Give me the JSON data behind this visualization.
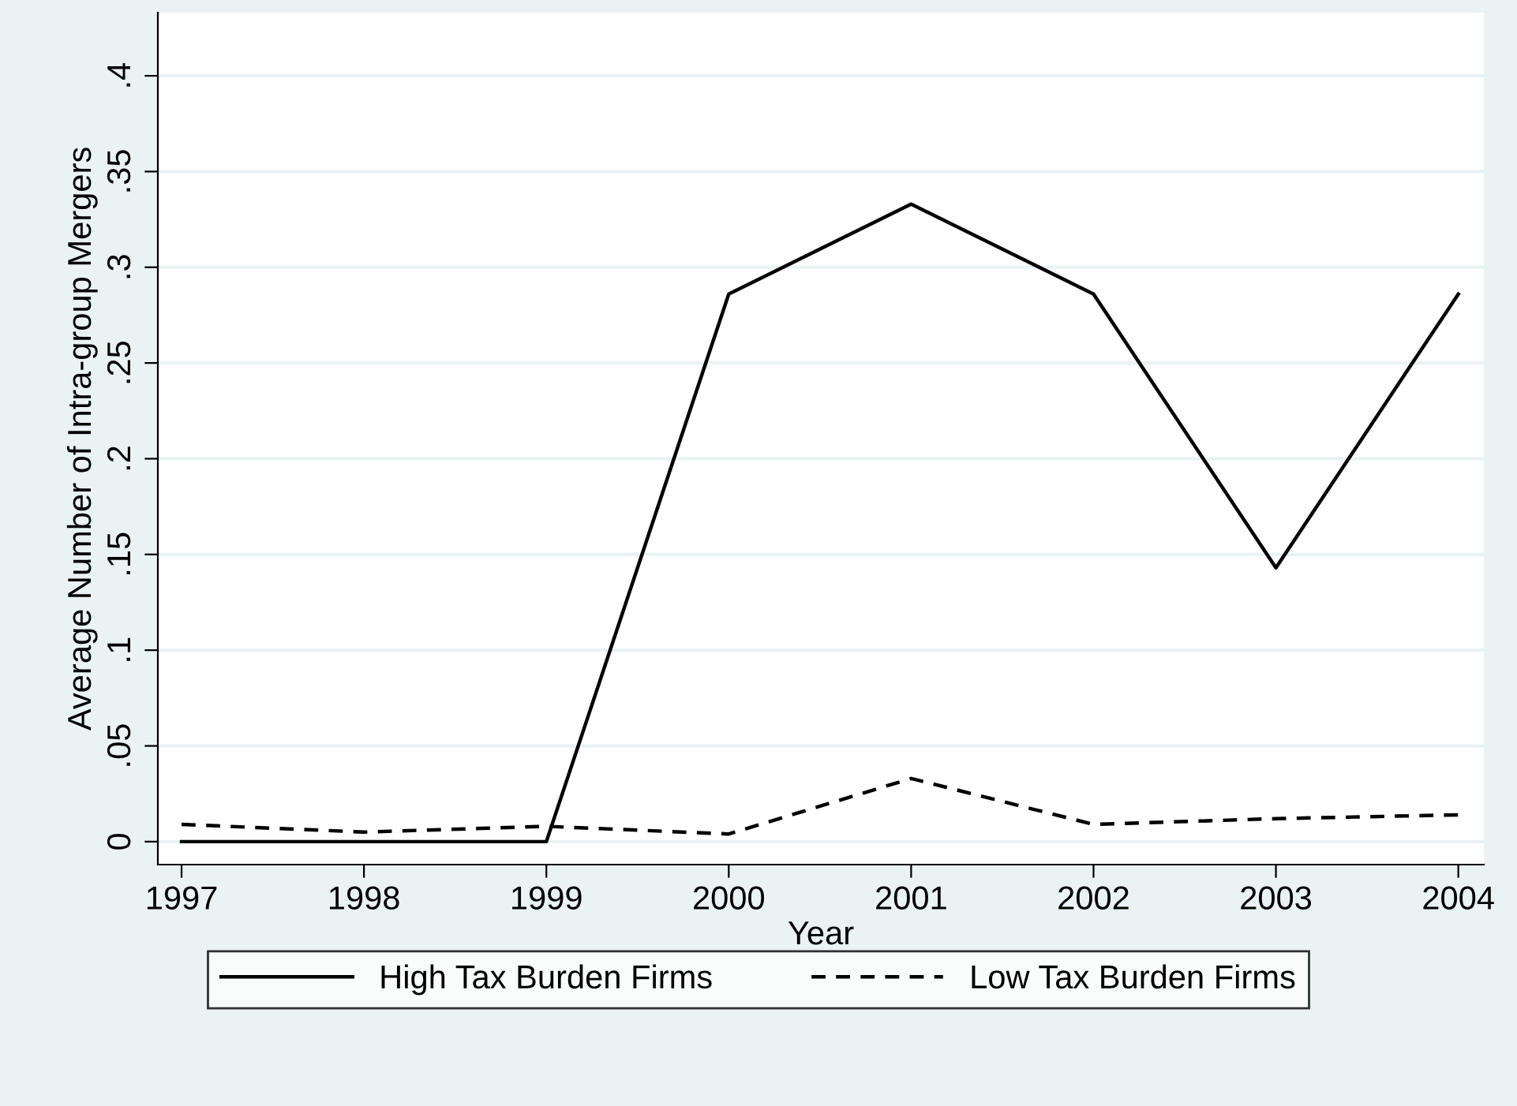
{
  "chart_data": {
    "type": "line",
    "xlabel": "Year",
    "ylabel": "Average Number of Intra-group Mergers",
    "x": [
      1997,
      1998,
      1999,
      2000,
      2001,
      2002,
      2003,
      2004
    ],
    "series": [
      {
        "name": "High Tax Burden Firms",
        "color": "#000000",
        "line_style": "solid",
        "values": [
          0,
          0,
          0,
          0.286,
          0.333,
          0.286,
          0.143,
          0.286
        ]
      },
      {
        "name": "Low Tax Burden Firms",
        "color": "#000000",
        "line_style": "dashed",
        "values": [
          0.009,
          0.005,
          0.008,
          0.004,
          0.033,
          0.009,
          0.012,
          0.014
        ]
      }
    ],
    "xlim": [
      1996.87,
      2004.14
    ],
    "xticks": [
      1997,
      1998,
      1999,
      2000,
      2001,
      2002,
      2003,
      2004
    ],
    "ylim": [
      -0.012,
      0.433
    ],
    "yticks": [
      {
        "value": 0,
        "label": "0"
      },
      {
        "value": 0.05,
        "label": ".05"
      },
      {
        "value": 0.1,
        "label": ".1"
      },
      {
        "value": 0.15,
        "label": ".15"
      },
      {
        "value": 0.2,
        "label": ".2"
      },
      {
        "value": 0.25,
        "label": ".25"
      },
      {
        "value": 0.3,
        "label": ".3"
      },
      {
        "value": 0.35,
        "label": ".35"
      },
      {
        "value": 0.4,
        "label": ".4"
      }
    ],
    "grid": "y",
    "legend": "bottom",
    "marker": "none"
  }
}
